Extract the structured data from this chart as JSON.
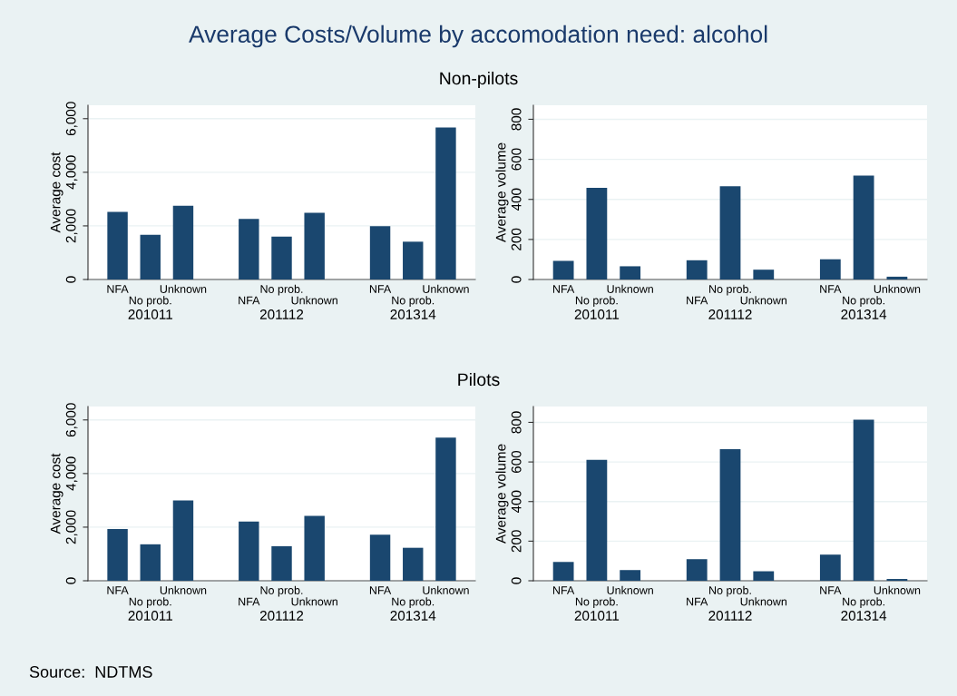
{
  "chart_data": [
    {
      "type": "bar",
      "title": "Average Costs/Volume by accomodation need: alcohol",
      "subtitle": "Non-pilots",
      "ylabel": "Average cost",
      "categories": [
        "NFA",
        "No prob.",
        "Unknown",
        null,
        "NFA",
        "No prob.",
        "Unknown",
        null,
        "NFA",
        "No prob.",
        "Unknown"
      ],
      "values": [
        2520,
        1670,
        2750,
        null,
        2260,
        1600,
        2490,
        null,
        1990,
        1410,
        5670
      ],
      "color": "#1a476f",
      "ylim": [
        0,
        6500
      ],
      "yticks": [
        0,
        {
          "value": 2000,
          "label": "2,000"
        },
        {
          "value": 4000,
          "label": "4,000"
        },
        {
          "value": 6000,
          "label": "6,000"
        }
      ],
      "grid": "y",
      "annotations": [
        "201011",
        "201112",
        "201314"
      ]
    },
    {
      "type": "bar",
      "ylabel": "Average volume",
      "categories": [
        "NFA",
        "No prob.",
        "Unknown",
        null,
        "NFA",
        "No prob.",
        "Unknown",
        null,
        "NFA",
        "No prob.",
        "Unknown"
      ],
      "values": [
        93,
        458,
        66,
        null,
        96,
        466,
        49,
        null,
        101,
        519,
        14
      ],
      "color": "#1a476f",
      "ylim": [
        0,
        870
      ],
      "yticks": [
        0,
        200,
        400,
        600,
        800
      ],
      "grid": "y",
      "annotations": [
        "201011",
        "201112",
        "201314"
      ]
    },
    {
      "type": "bar",
      "subtitle": "Pilots",
      "ylabel": "Average cost",
      "categories": [
        "NFA",
        "No prob.",
        "Unknown",
        null,
        "NFA",
        "No prob.",
        "Unknown",
        null,
        "NFA",
        "No prob.",
        "Unknown"
      ],
      "values": [
        1930,
        1360,
        3000,
        null,
        2210,
        1290,
        2420,
        null,
        1720,
        1230,
        5340
      ],
      "color": "#1a476f",
      "ylim": [
        0,
        6500
      ],
      "yticks": [
        0,
        {
          "value": 2000,
          "label": "2,000"
        },
        {
          "value": 4000,
          "label": "4,000"
        },
        {
          "value": 6000,
          "label": "6,000"
        }
      ],
      "grid": "y",
      "annotations": [
        "201011",
        "201112",
        "201314"
      ]
    },
    {
      "type": "bar",
      "ylabel": "Average volume",
      "categories": [
        "NFA",
        "No prob.",
        "Unknown",
        null,
        "NFA",
        "No prob.",
        "Unknown",
        null,
        "NFA",
        "No prob.",
        "Unknown"
      ],
      "values": [
        95,
        611,
        54,
        null,
        109,
        665,
        48,
        null,
        132,
        814,
        9
      ],
      "color": "#1a476f",
      "ylim": [
        0,
        880
      ],
      "yticks": [
        0,
        200,
        400,
        600,
        800
      ],
      "grid": "y",
      "annotations": [
        "201011",
        "201112",
        "201314",
        "Source:  NDTMS"
      ]
    }
  ]
}
